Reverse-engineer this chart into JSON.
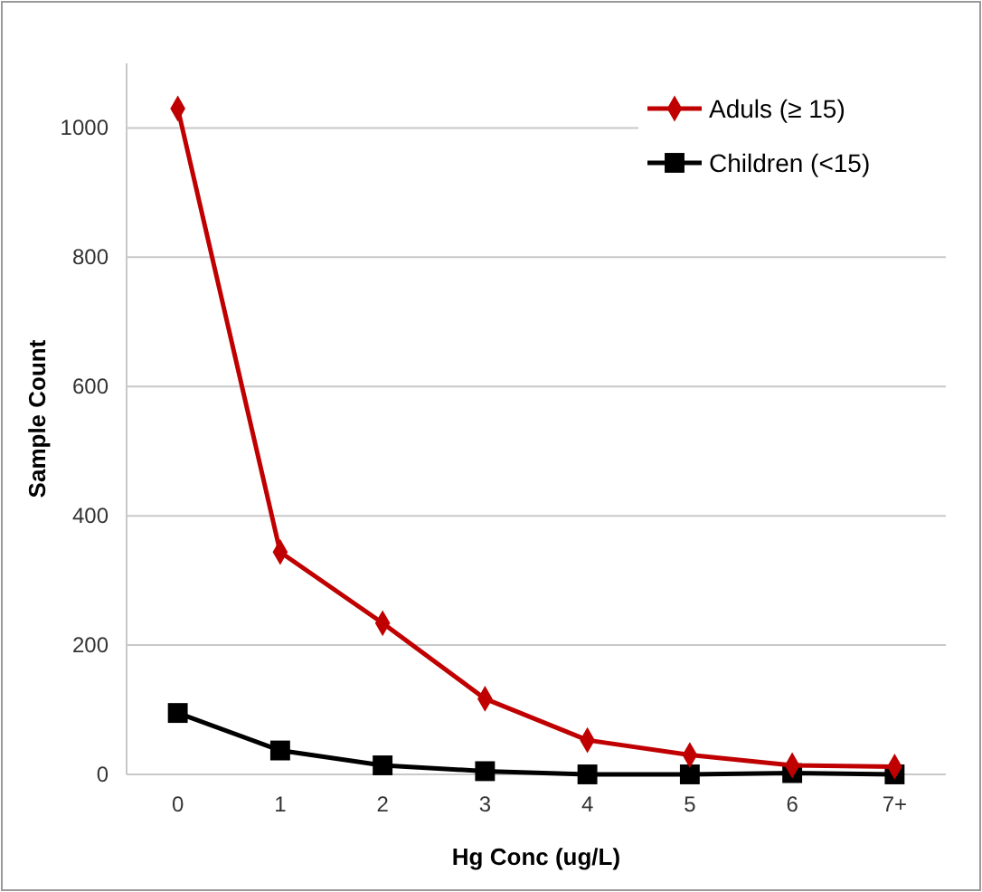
{
  "chart_data": {
    "type": "line",
    "xlabel": "Hg Conc (ug/L)",
    "ylabel": "Sample Count",
    "categories": [
      "0",
      "1",
      "2",
      "3",
      "4",
      "5",
      "6",
      "7+"
    ],
    "series": [
      {
        "name": "Aduls (≥ 15)",
        "color": "#c00000",
        "marker": "diamond",
        "values": [
          1030,
          344,
          234,
          117,
          53,
          30,
          14,
          12
        ]
      },
      {
        "name": "Children (<15)",
        "color": "#000000",
        "marker": "square",
        "values": [
          95,
          37,
          14,
          5,
          0,
          0,
          2,
          0
        ]
      }
    ],
    "ylim": [
      0,
      1100
    ],
    "yticks": [
      0,
      200,
      400,
      600,
      800,
      1000
    ],
    "grid": "y",
    "legend": "top right"
  }
}
